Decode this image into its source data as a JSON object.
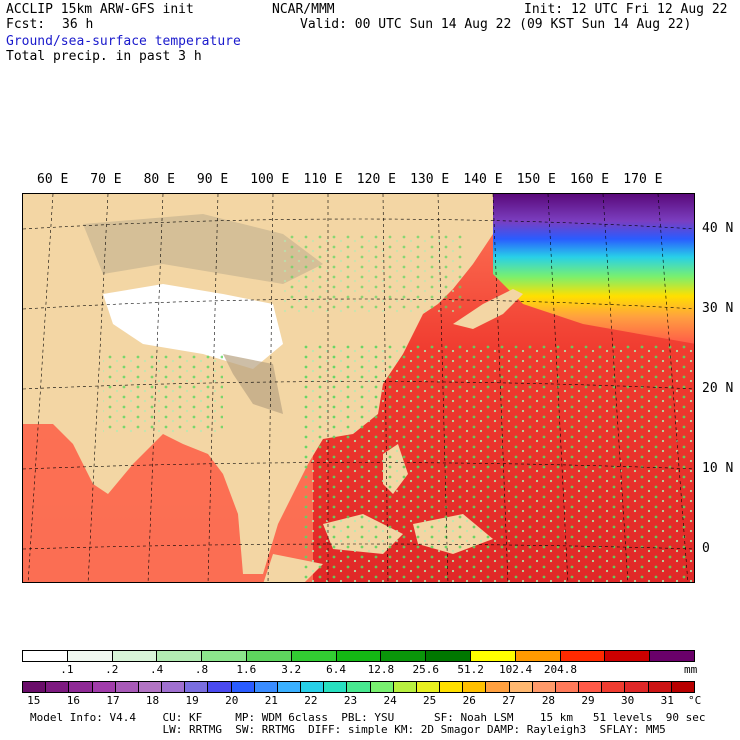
{
  "header": {
    "model": "ACCLIP 15km ARW-GFS init",
    "org": "NCAR/MMM",
    "init": "Init: 12 UTC Fri 12 Aug 22",
    "fcst_label": "Fcst:",
    "fcst_value": "36 h",
    "valid": "Valid: 00 UTC Sun 14 Aug 22 (09 KST Sun 14 Aug 22)",
    "field1": "Ground/sea-surface temperature",
    "field2": "Total precip. in past 3 h"
  },
  "map": {
    "lon_labels": [
      "60 E",
      "70 E",
      "80 E",
      "90 E",
      "100 E",
      "110 E",
      "120 E",
      "130 E",
      "140 E",
      "150 E",
      "160 E",
      "170 E"
    ],
    "lat_labels": [
      "40 N",
      "30 N",
      "20 N",
      "10 N",
      "0"
    ]
  },
  "precip_scale": {
    "colors": [
      "#ffffff",
      "#f0f8f0",
      "#d8f5d8",
      "#b2ecb2",
      "#8ce68c",
      "#5ed65e",
      "#32cd32",
      "#14b814",
      "#0a960a",
      "#007800",
      "#ffff00",
      "#ff9a00",
      "#ff2a00",
      "#cc0000",
      "#6a006a"
    ],
    "ticks": [
      ".1",
      ".2",
      ".4",
      ".8",
      "1.6",
      "3.2",
      "6.4",
      "12.8",
      "25.6",
      "51.2",
      "102.4",
      "204.8"
    ],
    "unit": "mm"
  },
  "temp_scale": {
    "colors": [
      "#6a0d6a",
      "#7d1a80",
      "#8f2a96",
      "#a13cab",
      "#a85ab8",
      "#b274c4",
      "#a070d0",
      "#7a6ee0",
      "#4a4af0",
      "#2a5cff",
      "#3a8cff",
      "#3ab0ff",
      "#28d0e8",
      "#28e0c0",
      "#48e890",
      "#78f070",
      "#b8f040",
      "#e8f020",
      "#ffe000",
      "#ffc000",
      "#ffa040",
      "#ffb870",
      "#ff9a6a",
      "#ff7a5a",
      "#ff5a48",
      "#f03c30",
      "#e02828",
      "#cc1414",
      "#b80000"
    ],
    "ticks": [
      "15",
      "16",
      "17",
      "18",
      "19",
      "20",
      "21",
      "22",
      "23",
      "24",
      "25",
      "26",
      "27",
      "28",
      "29",
      "30",
      "31"
    ],
    "unit": "°C"
  },
  "footer": {
    "line1": "Model Info: V4.4    CU: KF     MP: WDM 6class  PBL: YSU      SF: Noah LSM    15 km   51 levels  90 sec",
    "line2": "                    LW: RRTMG  SW: RRTMG  DIFF: simple KM: 2D Smagor DAMP: Rayleigh3  SFLAY: MM5"
  }
}
